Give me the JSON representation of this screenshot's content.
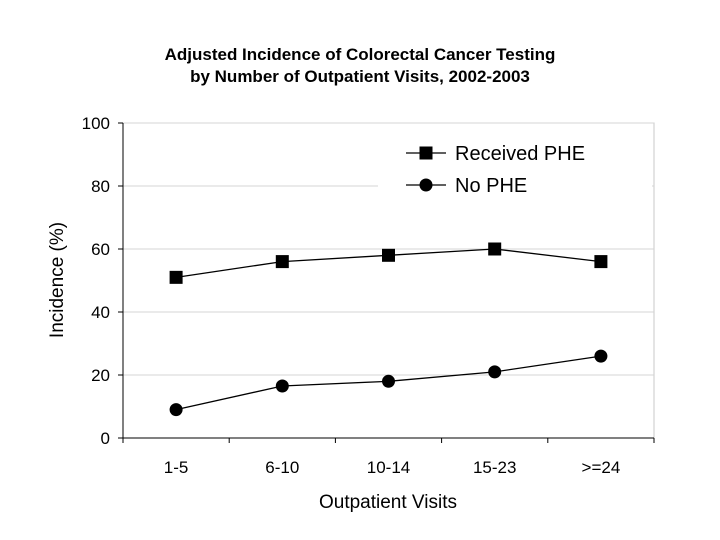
{
  "chart_data": {
    "type": "line",
    "title_lines": [
      "Adjusted Incidence of Colorectal Cancer Testing",
      "by Number of Outpatient Visits, 2002-2003"
    ],
    "xlabel": "Outpatient Visits",
    "ylabel": "Incidence (%)",
    "categories": [
      "1-5",
      "6-10",
      "10-14",
      "15-23",
      ">=24"
    ],
    "ylim": [
      0,
      100
    ],
    "yticks": [
      0,
      20,
      40,
      60,
      80,
      100
    ],
    "grid": true,
    "legend_position": "top-right",
    "series": [
      {
        "name": "Received PHE",
        "marker": "square",
        "color": "#000000",
        "values": [
          51,
          56,
          58,
          60,
          56
        ]
      },
      {
        "name": "No PHE",
        "marker": "circle",
        "color": "#000000",
        "values": [
          9,
          16.5,
          18,
          21,
          26
        ]
      }
    ]
  }
}
